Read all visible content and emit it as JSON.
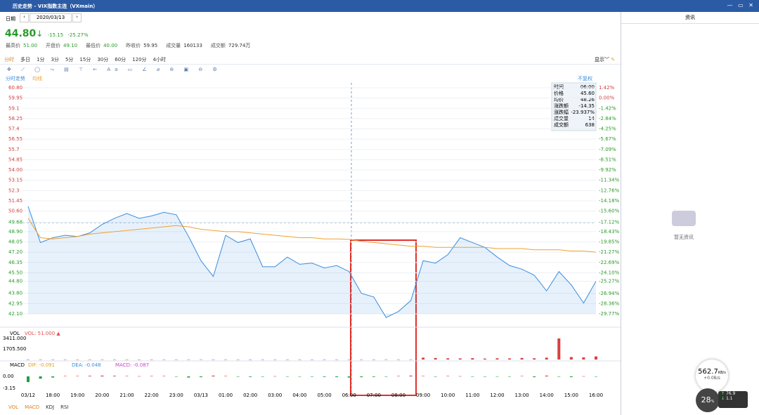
{
  "ui": {
    "window_title": "历史走势 - VIX指数主连（VXmain）",
    "date_label": "日期",
    "date": "2020/03/13",
    "price": "44.80",
    "change": "-15.15",
    "change_pct": "-25.27%",
    "stats": [
      [
        "最高价",
        "51.00"
      ],
      [
        "开盘价",
        "49.10"
      ],
      [
        "最低价",
        "40.00"
      ],
      [
        "昨收价",
        "59.95"
      ],
      [
        "成交量",
        "160133"
      ],
      [
        "成交额",
        "729.74万"
      ]
    ],
    "periods": [
      "分时",
      "多日",
      "1分",
      "3分",
      "5分",
      "15分",
      "30分",
      "60分",
      "120分",
      "4小时"
    ],
    "display": "显示",
    "adjust": "不复权",
    "info": [
      [
        "时间",
        "06:00"
      ],
      [
        "价格",
        "45.60"
      ],
      [
        "均价",
        "48.26"
      ],
      [
        "涨跌额",
        "-14.35"
      ],
      [
        "涨跌幅",
        "-23.937%"
      ],
      [
        "成交量",
        "14"
      ],
      [
        "成交额",
        "638"
      ]
    ],
    "bottom_tabs": [
      "VOL",
      "MACD",
      "KDJ",
      "RSI"
    ],
    "news_title": "资讯",
    "news_empty": "暂无资讯",
    "net": {
      "down": "562.7",
      "down_unit": "KB/s",
      "up": "+0.0B/s",
      "cpu": "28",
      "cpu_unit": "%",
      "r1": "76.9",
      "r2": "1.1"
    }
  },
  "chart_data": [
    {
      "type": "line",
      "categories": [
        "03/12",
        null,
        "18:00",
        null,
        "19:00",
        null,
        "20:00",
        null,
        "21:00",
        null,
        "22:00",
        null,
        "23:00",
        null,
        "03/13",
        null,
        "01:00",
        null,
        "02:00",
        null,
        "03:00",
        null,
        "04:00",
        null,
        "05:00",
        null,
        "06:00",
        null,
        "07:00",
        null,
        "08:00",
        null,
        "09:00",
        null,
        "10:00",
        null,
        "11:00",
        null,
        "12:00",
        null,
        "13:00",
        null,
        "14:00",
        null,
        "15:00",
        null,
        "16:00"
      ],
      "series": [
        {
          "name": "分时走势",
          "color": "#3b8ede",
          "values": [
            51.0,
            48.0,
            48.4,
            48.6,
            48.5,
            48.8,
            49.5,
            50.0,
            50.4,
            50.0,
            50.2,
            50.5,
            50.3,
            48.5,
            46.5,
            45.2,
            48.6,
            48.0,
            48.3,
            46.0,
            46.0,
            46.8,
            46.2,
            46.3,
            45.9,
            46.1,
            45.6,
            43.8,
            43.5,
            41.8,
            42.3,
            43.2,
            46.5,
            46.3,
            47.0,
            48.4,
            48.0,
            47.6,
            46.8,
            46.1,
            45.8,
            45.3,
            44.0,
            45.6,
            44.5,
            43.0,
            44.8
          ]
        },
        {
          "name": "均线",
          "color": "#f0a030",
          "values": [
            50.0,
            48.4,
            48.3,
            48.4,
            48.5,
            48.7,
            48.8,
            48.9,
            49.0,
            49.1,
            49.2,
            49.3,
            49.4,
            49.3,
            49.1,
            49.0,
            48.9,
            48.9,
            48.8,
            48.7,
            48.6,
            48.5,
            48.4,
            48.4,
            48.3,
            48.3,
            48.26,
            48.1,
            48.0,
            47.9,
            47.8,
            47.7,
            47.7,
            47.6,
            47.6,
            47.6,
            47.6,
            47.6,
            47.5,
            47.5,
            47.5,
            47.4,
            47.4,
            47.4,
            47.3,
            47.3,
            47.2
          ]
        }
      ],
      "ylim": [
        42.1,
        60.8
      ],
      "yticks": [
        {
          "value": 60.8,
          "label": "60.80"
        },
        59.95,
        59.1,
        58.25,
        57.4,
        56.55,
        55.7,
        54.85,
        {
          "value": 54,
          "label": "54.00"
        },
        53.15,
        52.3,
        51.45,
        {
          "value": 50.6,
          "label": "50.60"
        },
        49.68,
        {
          "value": 48.9,
          "label": "48.90"
        },
        48.05,
        {
          "value": 47.2,
          "label": "47.20"
        },
        46.35,
        {
          "value": 45.5,
          "label": "45.50"
        },
        {
          "value": 44.8,
          "label": "44.80"
        },
        {
          "value": 43.8,
          "label": "43.80"
        },
        42.95,
        {
          "value": 42.1,
          "label": "42.10"
        }
      ],
      "y2lim": [
        -29.77,
        1.42
      ],
      "y2ticks": [
        {
          "value": 1.42,
          "label": "1.42%"
        },
        {
          "value": 0,
          "label": "0.00%"
        },
        {
          "value": -1.42,
          "label": "-1.42%"
        },
        {
          "value": -2.84,
          "label": "-2.84%"
        },
        {
          "value": -4.25,
          "label": "-4.25%"
        },
        {
          "value": -5.67,
          "label": "-5.67%"
        },
        {
          "value": -7.09,
          "label": "-7.09%"
        },
        {
          "value": -8.51,
          "label": "-8.51%"
        },
        {
          "value": -9.92,
          "label": "-9.92%"
        },
        {
          "value": -11.34,
          "label": "-11.34%"
        },
        {
          "value": -12.76,
          "label": "-12.76%"
        },
        {
          "value": -14.18,
          "label": "-14.18%"
        },
        {
          "value": -15.6,
          "label": "-15.60%"
        },
        {
          "value": -17.12,
          "label": "-17.12%"
        },
        {
          "value": -18.43,
          "label": "-18.43%"
        },
        {
          "value": -19.85,
          "label": "-19.85%"
        },
        {
          "value": -21.27,
          "label": "-21.27%"
        },
        {
          "value": -22.69,
          "label": "-22.69%"
        },
        {
          "value": -24.1,
          "label": "-24.10%"
        },
        {
          "value": -25.27,
          "label": "-25.27%"
        },
        {
          "value": -26.94,
          "label": "-26.94%"
        },
        {
          "value": -28.36,
          "label": "-28.36%"
        },
        {
          "value": -29.77,
          "label": "-29.77%"
        }
      ]
    },
    {
      "type": "bar",
      "title": "VOL",
      "subtitle": "VOL: 51.000 ▲",
      "color": "#d84040",
      "values": [
        20,
        15,
        12,
        10,
        10,
        12,
        15,
        12,
        10,
        10,
        12,
        14,
        12,
        16,
        18,
        15,
        12,
        10,
        10,
        12,
        10,
        10,
        12,
        10,
        12,
        14,
        14,
        15,
        12,
        18,
        16,
        20,
        300,
        250,
        200,
        180,
        220,
        150,
        200,
        180,
        250,
        200,
        300,
        3411,
        400,
        350,
        500
      ],
      "ylim": [
        0,
        3411
      ],
      "yticks": [
        {
          "value": 3411,
          "label": "3411.000"
        },
        {
          "value": 1705.5,
          "label": "1705.500"
        }
      ]
    },
    {
      "type": "bar",
      "title": "MACD",
      "dif": "DIF: -0.091",
      "dea": "DEA: -0.048",
      "macd": "MACD: -0.087",
      "values": [
        -1.5,
        -0.6,
        -0.3,
        0.1,
        0.1,
        0.15,
        0.2,
        0.15,
        0.1,
        0.05,
        0.1,
        0.1,
        -0.1,
        -0.3,
        -0.2,
        0.2,
        0.1,
        -0.1,
        -0.15,
        -0.1,
        0.05,
        -0.05,
        -0.05,
        -0.1,
        -0.15,
        -0.2,
        -0.3,
        -0.2,
        -0.15,
        -0.1,
        0.1,
        0.2,
        0.1,
        -0.1,
        0.1,
        0.05,
        -0.1,
        -0.1,
        -0.05,
        -0.1,
        0.1,
        -0.2,
        0.2,
        -0.1,
        -0.2,
        0.05,
        -0.087
      ],
      "ylim": [
        -3.15,
        2.6
      ],
      "yticks": [
        {
          "value": 0,
          "label": "0.00"
        },
        -3.15
      ]
    }
  ]
}
